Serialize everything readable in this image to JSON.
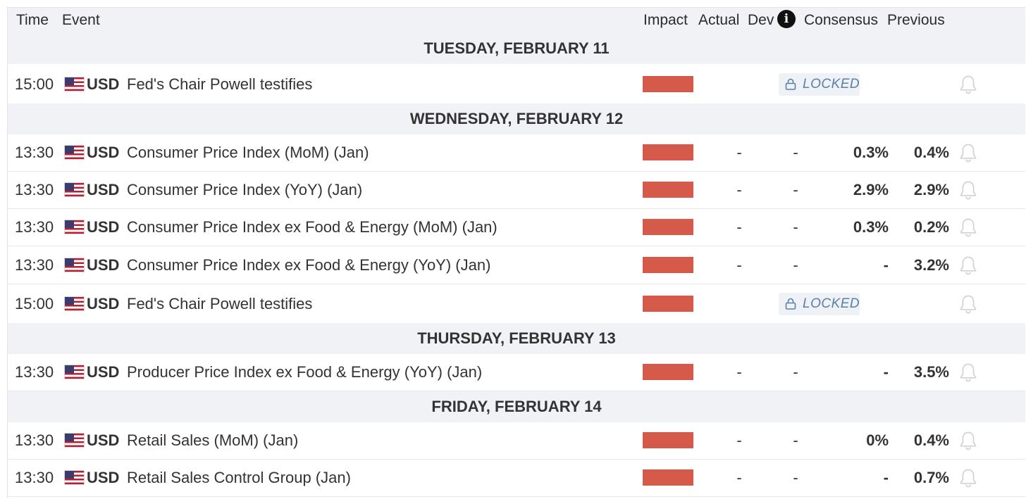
{
  "header": {
    "time": "Time",
    "event": "Event",
    "impact": "Impact",
    "actual": "Actual",
    "dev": "Dev",
    "info_icon": "i",
    "consensus": "Consensus",
    "previous": "Previous"
  },
  "colors": {
    "impact_high": "#d65a4a",
    "locked_text": "#5b7fa6",
    "day_bg": "#f1f2f5"
  },
  "icons": {
    "flag": "us-flag-icon",
    "lock": "lock-icon",
    "bell": "bell-icon",
    "info": "info-icon"
  },
  "days": [
    {
      "label": "TUESDAY, FEBRUARY 11",
      "events": [
        {
          "time": "15:00",
          "currency": "USD",
          "name": "Fed's Chair Powell testifies",
          "impact": "high",
          "locked": true,
          "locked_label": "LOCKED"
        }
      ]
    },
    {
      "label": "WEDNESDAY, FEBRUARY 12",
      "events": [
        {
          "time": "13:30",
          "currency": "USD",
          "name": "Consumer Price Index (MoM) (Jan)",
          "impact": "high",
          "actual": "-",
          "dev": "-",
          "consensus": "0.3%",
          "previous": "0.4%"
        },
        {
          "time": "13:30",
          "currency": "USD",
          "name": "Consumer Price Index (YoY) (Jan)",
          "impact": "high",
          "actual": "-",
          "dev": "-",
          "consensus": "2.9%",
          "previous": "2.9%"
        },
        {
          "time": "13:30",
          "currency": "USD",
          "name": "Consumer Price Index ex Food & Energy (MoM) (Jan)",
          "impact": "high",
          "actual": "-",
          "dev": "-",
          "consensus": "0.3%",
          "previous": "0.2%"
        },
        {
          "time": "13:30",
          "currency": "USD",
          "name": "Consumer Price Index ex Food & Energy (YoY) (Jan)",
          "impact": "high",
          "actual": "-",
          "dev": "-",
          "consensus": "-",
          "previous": "3.2%"
        },
        {
          "time": "15:00",
          "currency": "USD",
          "name": "Fed's Chair Powell testifies",
          "impact": "high",
          "locked": true,
          "locked_label": "LOCKED"
        }
      ]
    },
    {
      "label": "THURSDAY, FEBRUARY 13",
      "events": [
        {
          "time": "13:30",
          "currency": "USD",
          "name": "Producer Price Index ex Food & Energy (YoY) (Jan)",
          "impact": "high",
          "actual": "-",
          "dev": "-",
          "consensus": "-",
          "previous": "3.5%"
        }
      ]
    },
    {
      "label": "FRIDAY, FEBRUARY 14",
      "events": [
        {
          "time": "13:30",
          "currency": "USD",
          "name": "Retail Sales (MoM) (Jan)",
          "impact": "high",
          "actual": "-",
          "dev": "-",
          "consensus": "0%",
          "previous": "0.4%"
        },
        {
          "time": "13:30",
          "currency": "USD",
          "name": "Retail Sales Control Group (Jan)",
          "impact": "high",
          "actual": "-",
          "dev": "-",
          "consensus": "-",
          "previous": "0.7%"
        }
      ]
    }
  ]
}
